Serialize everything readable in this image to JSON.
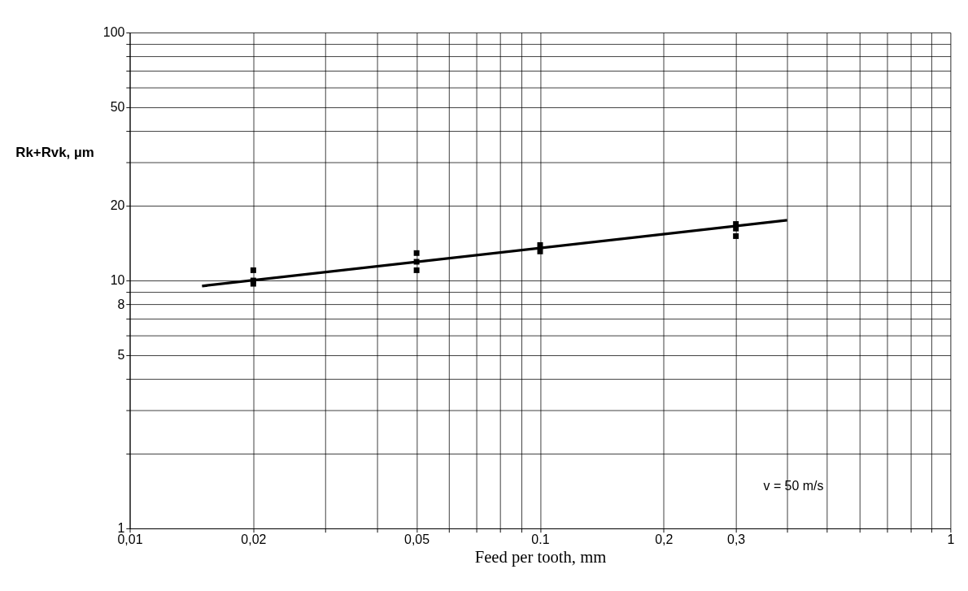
{
  "chart_data": {
    "type": "scatter",
    "xlabel": "Feed per tooth, mm",
    "ylabel": "Rk+Rvk, µm",
    "log": "xy",
    "grid": true,
    "xlim": [
      0.01,
      1
    ],
    "ylim": [
      1,
      100
    ],
    "xticks": [
      {
        "value": 0.01,
        "label": "0,01"
      },
      {
        "value": 0.02,
        "label": "0,02"
      },
      {
        "value": 0.03,
        "label": null
      },
      {
        "value": 0.04,
        "label": null
      },
      {
        "value": 0.05,
        "label": "0,05"
      },
      {
        "value": 0.06,
        "label": null
      },
      {
        "value": 0.07,
        "label": null
      },
      {
        "value": 0.08,
        "label": null
      },
      {
        "value": 0.09,
        "label": null
      },
      {
        "value": 0.1,
        "label": "0.1"
      },
      {
        "value": 0.2,
        "label": "0,2"
      },
      {
        "value": 0.3,
        "label": "0,3"
      },
      {
        "value": 0.4,
        "label": null
      },
      {
        "value": 0.5,
        "label": null
      },
      {
        "value": 0.6,
        "label": null
      },
      {
        "value": 0.7,
        "label": null
      },
      {
        "value": 0.8,
        "label": null
      },
      {
        "value": 0.9,
        "label": null
      },
      1
    ],
    "yticks": [
      1,
      {
        "value": 2,
        "label": null
      },
      {
        "value": 3,
        "label": null
      },
      {
        "value": 4,
        "label": null
      },
      5,
      {
        "value": 6,
        "label": null
      },
      {
        "value": 7,
        "label": null
      },
      8,
      {
        "value": 9,
        "label": null
      },
      10,
      20,
      {
        "value": 30,
        "label": null
      },
      {
        "value": 40,
        "label": null
      },
      50,
      {
        "value": 60,
        "label": null
      },
      {
        "value": 70,
        "label": null
      },
      {
        "value": 80,
        "label": null
      },
      {
        "value": 90,
        "label": null
      },
      100
    ],
    "series": [
      {
        "type": "scatter",
        "color": "#000000",
        "marker": "square",
        "x": [
          0.02,
          0.02,
          0.02,
          0.05,
          0.05,
          0.05,
          0.1,
          0.1,
          0.3,
          0.3,
          0.3
        ],
        "values": [
          11,
          10,
          9.7,
          12.9,
          11.9,
          11,
          13.9,
          13.1,
          16.9,
          16.2,
          15.1
        ]
      },
      {
        "type": "line",
        "color": "#000000",
        "marker": "none",
        "line_style": "solid",
        "x": [
          0.015,
          0.4
        ],
        "values": [
          9.5,
          17.5
        ]
      }
    ],
    "annotations": [
      "v = 50 m/s"
    ]
  }
}
